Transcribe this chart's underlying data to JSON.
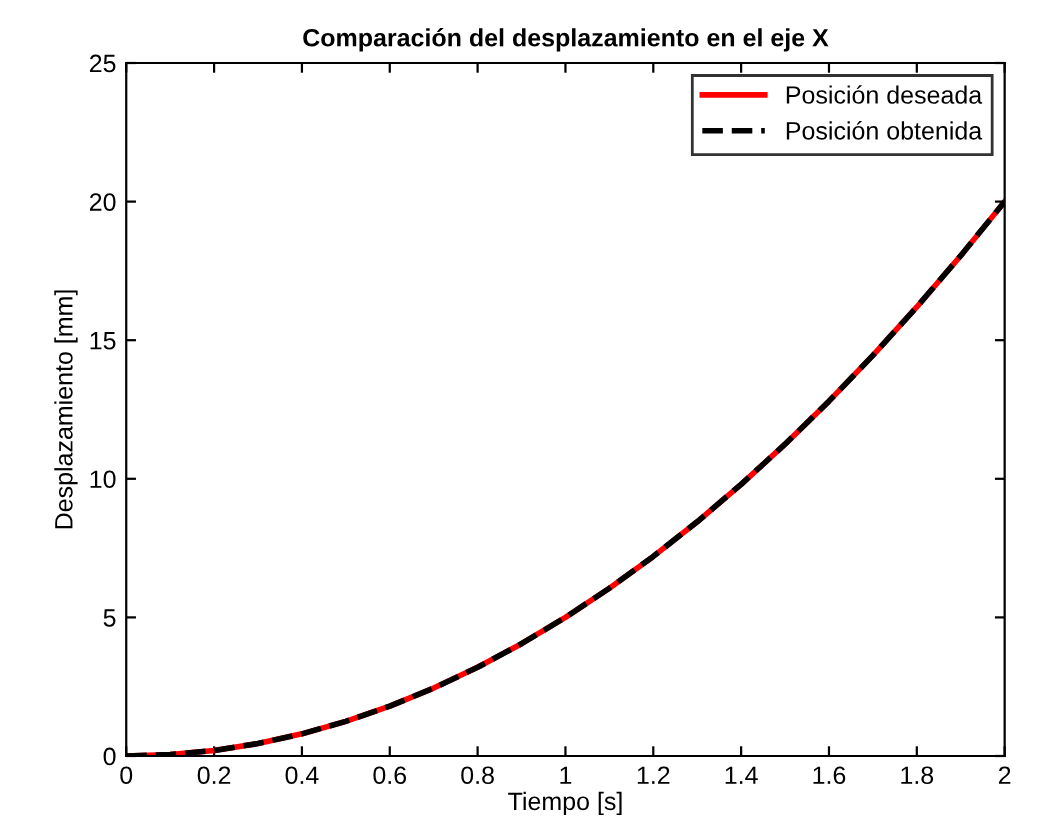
{
  "chart_data": {
    "type": "line",
    "title": "Comparación del desplazamiento en el eje X",
    "xlabel": "Tiempo [s]",
    "ylabel": "Desplazamiento [mm]",
    "x": [
      0,
      0.1,
      0.2,
      0.3,
      0.4,
      0.5,
      0.6,
      0.7,
      0.8,
      0.9,
      1,
      1.1,
      1.2,
      1.3,
      1.4,
      1.5,
      1.6,
      1.7,
      1.8,
      1.9,
      2
    ],
    "series": [
      {
        "name": "Posición deseada",
        "color": "#ff0000",
        "line_style": "solid",
        "values": [
          0,
          0.05,
          0.2,
          0.45,
          0.8,
          1.25,
          1.8,
          2.45,
          3.2,
          4.05,
          5,
          6.05,
          7.2,
          8.45,
          9.8,
          11.25,
          12.8,
          14.45,
          16.2,
          18.05,
          20
        ]
      },
      {
        "name": "Posición obtenida",
        "color": "#000000",
        "line_style": "dashed",
        "values": [
          0,
          0.05,
          0.2,
          0.45,
          0.8,
          1.25,
          1.8,
          2.45,
          3.2,
          4.05,
          5,
          6.05,
          7.2,
          8.45,
          9.8,
          11.25,
          12.8,
          14.45,
          16.2,
          18.05,
          20
        ]
      }
    ],
    "xlim": [
      0,
      2
    ],
    "xticks": [
      0,
      0.2,
      0.4,
      0.6,
      0.8,
      1,
      1.2,
      1.4,
      1.6,
      1.8,
      2
    ],
    "ylim": [
      0,
      25
    ],
    "yticks": [
      0,
      5,
      10,
      15,
      20,
      25
    ],
    "grid": false,
    "legend": "top right",
    "marker": "none"
  }
}
